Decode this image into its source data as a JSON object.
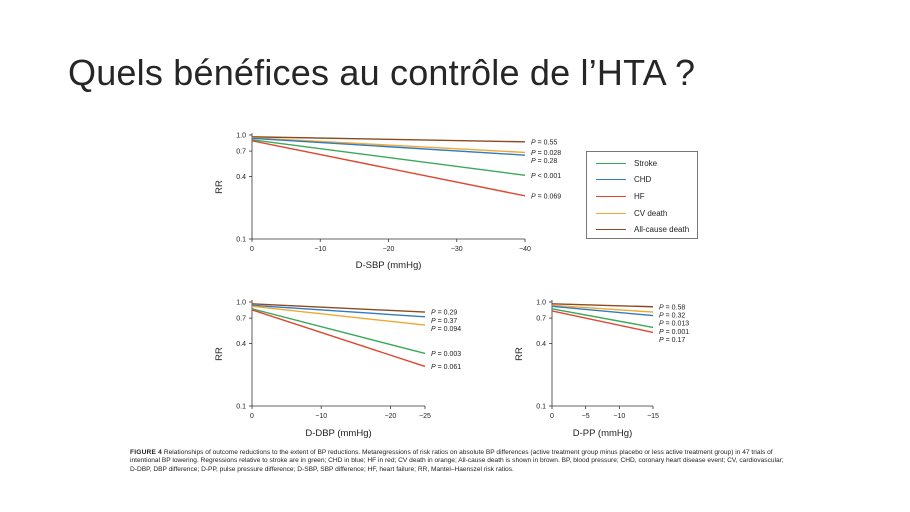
{
  "slide_title": "Quels bénéfices au contrôle de l’HTA ?",
  "colors": {
    "Stroke": "#3aa85a",
    "CHD": "#2f7cc0",
    "HF": "#e0452f",
    "CV death": "#f0a830",
    "All-cause death": "#8a4b22"
  },
  "legend": [
    {
      "name": "Stroke",
      "color": "#3aa85a"
    },
    {
      "name": "CHD",
      "color": "#2f7cc0"
    },
    {
      "name": "HF",
      "color": "#e0452f"
    },
    {
      "name": "CV death",
      "color": "#f0a830"
    },
    {
      "name": "All-cause death",
      "color": "#8a4b22"
    }
  ],
  "caption": {
    "label": "FIGURE 4",
    "text": "Relationships of outcome reductions to the extent of BP reductions. Metaregressions of risk ratios on absolute BP differences (active treatment group minus placebo or less active treatment group) in 47 trials of intentional BP lowering. Regressions relative to stroke are in green; CHD in blue; HF in red; CV death in orange; All-cause death is shown in brown. BP, blood pressure; CHD, coronary heart disease event; CV, cardiovascular; D-DBP, DBP difference; D-PP, pulse pressure difference; D-SBP, SBP difference; HF, heart failure; RR, Mantel–Haenszel risk ratios."
  },
  "chart_data": [
    {
      "type": "line",
      "ylabel": "RR",
      "xlabel": "D-SBP (mmHg)",
      "xlim": [
        0,
        -40
      ],
      "ylim": [
        0.1,
        1.0
      ],
      "yscale": "log",
      "xticks": [
        0,
        -10,
        -20,
        -30,
        -40
      ],
      "xtick_labels": [
        "0",
        "−10",
        "−20",
        "−30",
        "−40"
      ],
      "yticks": [
        1.0,
        0.7,
        0.4,
        0.1
      ],
      "ytick_labels": [
        "1.0",
        "0.7",
        "0.4",
        "0.1"
      ],
      "series": [
        {
          "name": "All-cause death",
          "x": [
            0,
            -40
          ],
          "y": [
            0.96,
            0.86
          ],
          "p": "P = 0.55"
        },
        {
          "name": "CV death",
          "x": [
            0,
            -40
          ],
          "y": [
            0.94,
            0.68
          ],
          "p": "P = 0.028"
        },
        {
          "name": "CHD",
          "x": [
            0,
            -40
          ],
          "y": [
            0.93,
            0.64
          ],
          "p": "P = 0.28"
        },
        {
          "name": "Stroke",
          "x": [
            0,
            -40
          ],
          "y": [
            0.9,
            0.41
          ],
          "p": "P < 0.001"
        },
        {
          "name": "HF",
          "x": [
            0,
            -40
          ],
          "y": [
            0.88,
            0.26
          ],
          "p": "P = 0.069"
        }
      ]
    },
    {
      "type": "line",
      "ylabel": "RR",
      "xlabel": "D-DBP (mmHg)",
      "xlim": [
        0,
        -25
      ],
      "ylim": [
        0.1,
        1.0
      ],
      "yscale": "log",
      "xticks": [
        0,
        -10,
        -20,
        -25
      ],
      "xtick_labels": [
        "0",
        "−10",
        "−20",
        "−25"
      ],
      "yticks": [
        1.0,
        0.7,
        0.4,
        0.1
      ],
      "ytick_labels": [
        "1.0",
        "0.7",
        "0.4",
        "0.1"
      ],
      "series": [
        {
          "name": "All-cause death",
          "x": [
            0,
            -25
          ],
          "y": [
            0.96,
            0.8
          ],
          "p": "P = 0.29"
        },
        {
          "name": "CHD",
          "x": [
            0,
            -25
          ],
          "y": [
            0.93,
            0.72
          ],
          "p": "P = 0.37"
        },
        {
          "name": "CV death",
          "x": [
            0,
            -25
          ],
          "y": [
            0.91,
            0.6
          ],
          "p": "P = 0.094"
        },
        {
          "name": "Stroke",
          "x": [
            0,
            -25
          ],
          "y": [
            0.86,
            0.32
          ],
          "p": "P = 0.003"
        },
        {
          "name": "HF",
          "x": [
            0,
            -25
          ],
          "y": [
            0.84,
            0.24
          ],
          "p": "P = 0.061"
        }
      ]
    },
    {
      "type": "line",
      "ylabel": "RR",
      "xlabel": "D-PP (mmHg)",
      "xlim": [
        0,
        -15
      ],
      "ylim": [
        0.1,
        1.0
      ],
      "yscale": "log",
      "xticks": [
        0,
        -5,
        -10,
        -15
      ],
      "xtick_labels": [
        "0",
        "−5",
        "−10",
        "−15"
      ],
      "yticks": [
        1.0,
        0.7,
        0.4,
        0.1
      ],
      "ytick_labels": [
        "1.0",
        "0.7",
        "0.4",
        "0.1"
      ],
      "series": [
        {
          "name": "All-cause death",
          "x": [
            0,
            -15
          ],
          "y": [
            0.96,
            0.9
          ],
          "p": "P = 0.58"
        },
        {
          "name": "CV death",
          "x": [
            0,
            -15
          ],
          "y": [
            0.93,
            0.8
          ],
          "p": "P = 0.32"
        },
        {
          "name": "CHD",
          "x": [
            0,
            -15
          ],
          "y": [
            0.91,
            0.74
          ],
          "p": "P = 0.013"
        },
        {
          "name": "Stroke",
          "x": [
            0,
            -15
          ],
          "y": [
            0.86,
            0.57
          ],
          "p": "P = 0.001"
        },
        {
          "name": "HF",
          "x": [
            0,
            -15
          ],
          "y": [
            0.82,
            0.51
          ],
          "p": "P = 0.17"
        }
      ]
    }
  ]
}
